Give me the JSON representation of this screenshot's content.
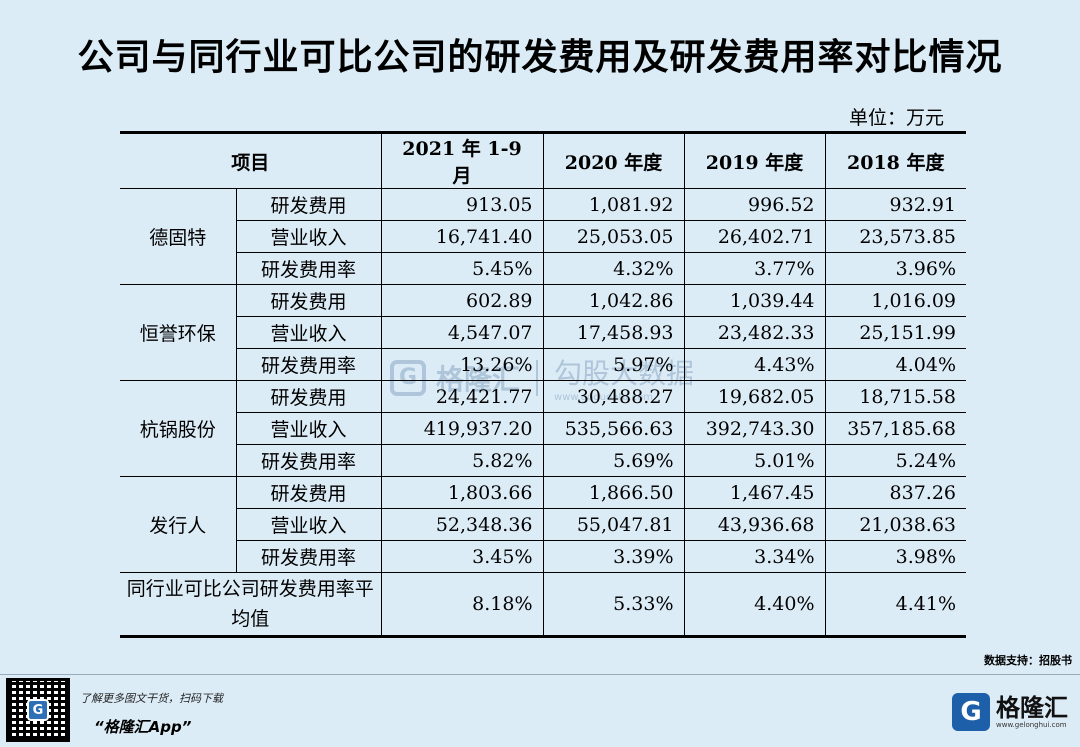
{
  "title": "公司与同行业可比公司的研发费用及研发费用率对比情况",
  "unit": "单位：万元",
  "watermark": {
    "brand": "格隆汇",
    "sub": "勾股大数据",
    "url": "www.gogudata.com"
  },
  "table": {
    "headers": [
      "项目",
      "2021 年 1-9 月",
      "2020 年度",
      "2019 年度",
      "2018 年度"
    ],
    "groups": [
      {
        "company": "德固特",
        "rows": [
          {
            "metric": "研发费用",
            "values": [
              "913.05",
              "1,081.92",
              "996.52",
              "932.91"
            ]
          },
          {
            "metric": "营业收入",
            "values": [
              "16,741.40",
              "25,053.05",
              "26,402.71",
              "23,573.85"
            ]
          },
          {
            "metric": "研发费用率",
            "values": [
              "5.45%",
              "4.32%",
              "3.77%",
              "3.96%"
            ]
          }
        ]
      },
      {
        "company": "恒誉环保",
        "rows": [
          {
            "metric": "研发费用",
            "values": [
              "602.89",
              "1,042.86",
              "1,039.44",
              "1,016.09"
            ]
          },
          {
            "metric": "营业收入",
            "values": [
              "4,547.07",
              "17,458.93",
              "23,482.33",
              "25,151.99"
            ]
          },
          {
            "metric": "研发费用率",
            "values": [
              "13.26%",
              "5.97%",
              "4.43%",
              "4.04%"
            ]
          }
        ]
      },
      {
        "company": "杭锅股份",
        "rows": [
          {
            "metric": "研发费用",
            "values": [
              "24,421.77",
              "30,488.27",
              "19,682.05",
              "18,715.58"
            ]
          },
          {
            "metric": "营业收入",
            "values": [
              "419,937.20",
              "535,566.63",
              "392,743.30",
              "357,185.68"
            ]
          },
          {
            "metric": "研发费用率",
            "values": [
              "5.82%",
              "5.69%",
              "5.01%",
              "5.24%"
            ]
          }
        ]
      },
      {
        "company": "发行人",
        "rows": [
          {
            "metric": "研发费用",
            "values": [
              "1,803.66",
              "1,866.50",
              "1,467.45",
              "837.26"
            ]
          },
          {
            "metric": "营业收入",
            "values": [
              "52,348.36",
              "55,047.81",
              "43,936.68",
              "21,038.63"
            ]
          },
          {
            "metric": "研发费用率",
            "values": [
              "3.45%",
              "3.39%",
              "3.34%",
              "3.98%"
            ]
          }
        ]
      }
    ],
    "average": {
      "label": "同行业可比公司研发费用率平均值",
      "values": [
        "8.18%",
        "5.33%",
        "4.40%",
        "4.41%"
      ]
    }
  },
  "source": "数据支持：招股书",
  "footer": {
    "promo": "了解更多图文干货，扫码下载",
    "app_name": "“格隆汇App”",
    "brand_name": "格隆汇",
    "brand_url": "www.gelonghui.com"
  }
}
